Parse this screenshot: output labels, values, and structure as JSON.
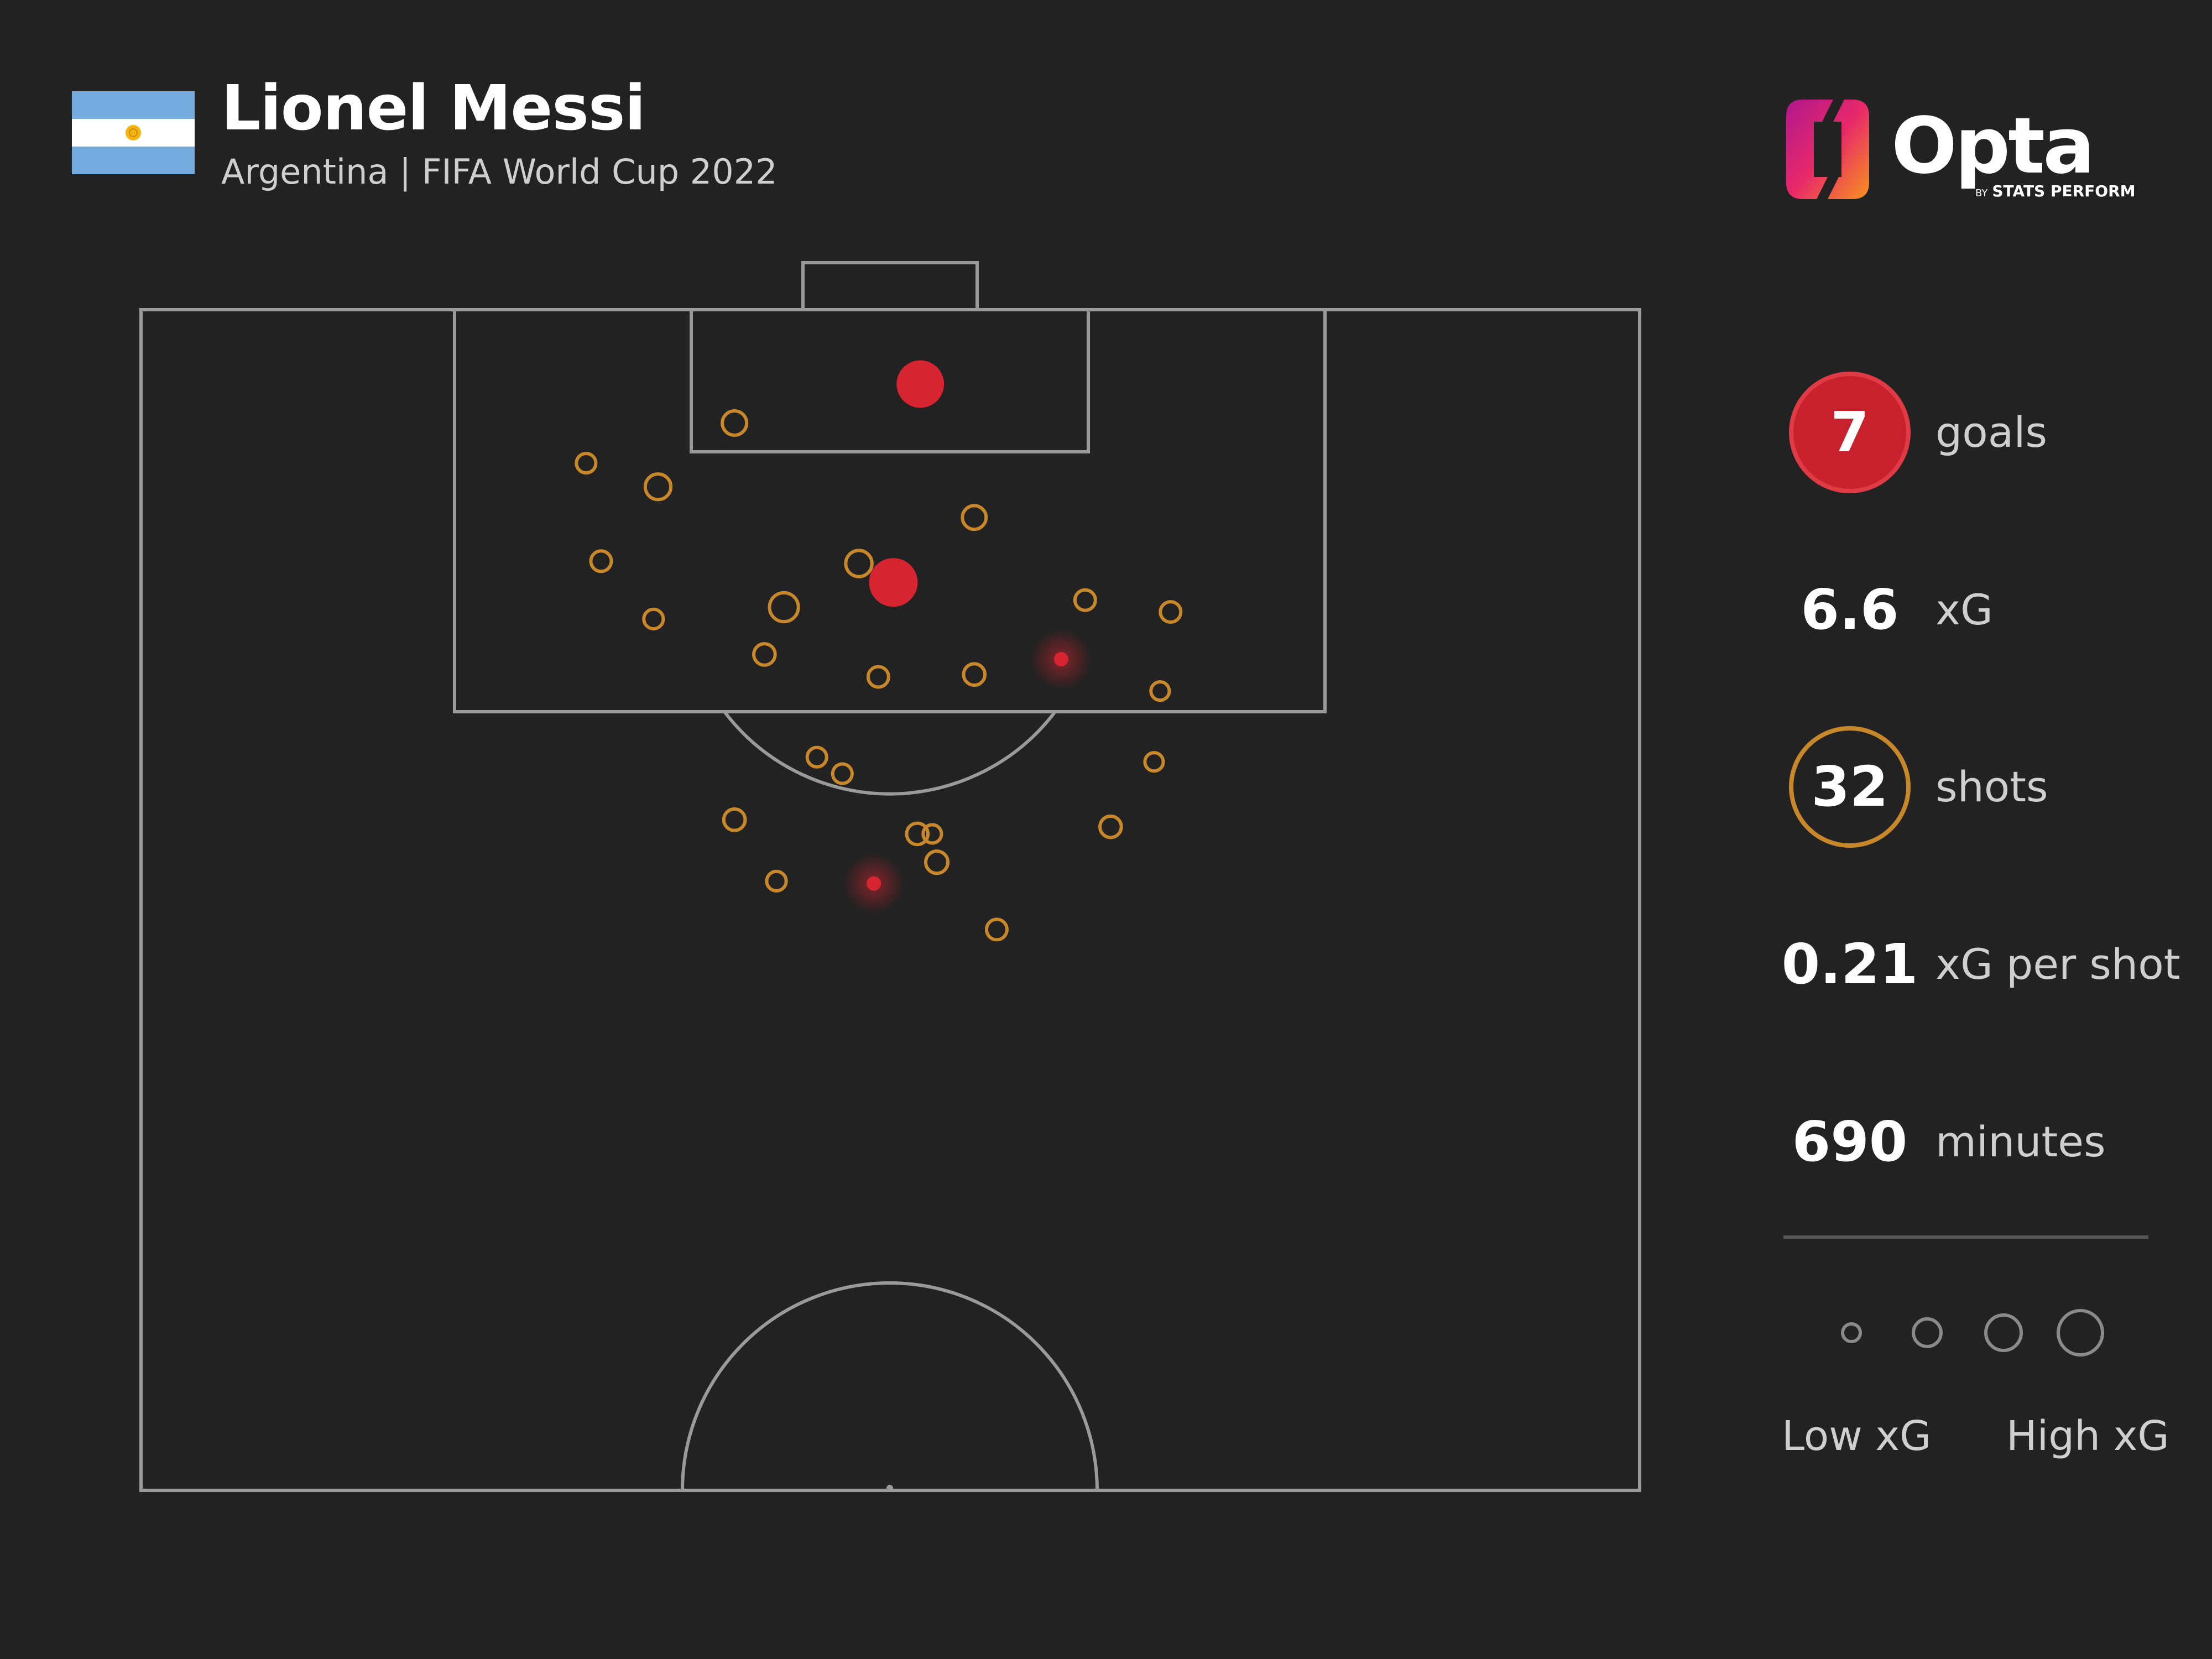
{
  "header": {
    "title": "Lionel Messi",
    "subtitle": "Argentina | FIFA World Cup 2022",
    "brand": "Opta",
    "brand_by": "BY",
    "brand_sub": "STATS PERFORM",
    "flag_colors": [
      "#74acdf",
      "#ffffff",
      "#74acdf"
    ],
    "sun_color": "#f6b40e"
  },
  "stats": [
    {
      "value": "7",
      "label": "goals"
    },
    {
      "value": "6.6",
      "label": "xG"
    },
    {
      "value": "32",
      "label": "shots"
    },
    {
      "value": "0.21",
      "label": "xG per shot"
    },
    {
      "value": "690",
      "label": "minutes"
    }
  ],
  "legend": {
    "low_label": "Low xG",
    "high_label": "High xG",
    "color": "#8a8a8a"
  },
  "colors": {
    "background": "#222222",
    "goal": "#d62530",
    "goal_circle": "#c8202c",
    "shot": "#c8882a",
    "pitch_line": "#9a9a9a"
  },
  "chart_data": {
    "type": "scatter",
    "description_units": "pitch coordinates: x = width across pitch (0-100), y = distance from goal line (0-100 of half pitch)",
    "x_range": [
      0,
      100
    ],
    "y_range": [
      0,
      100
    ],
    "points": [
      {
        "x": 52.0,
        "y": 6.3,
        "xg": 0.75,
        "outcome": "goal"
      },
      {
        "x": 50.2,
        "y": 23.1,
        "xg": 0.8,
        "outcome": "goal"
      },
      {
        "x": 61.4,
        "y": 29.6,
        "xg": 0.06,
        "outcome": "goal"
      },
      {
        "x": 48.9,
        "y": 48.6,
        "xg": 0.06,
        "outcome": "goal"
      },
      {
        "x": 39.6,
        "y": 9.6,
        "xg": 0.1,
        "outcome": "shot"
      },
      {
        "x": 29.7,
        "y": 13.0,
        "xg": 0.04,
        "outcome": "shot"
      },
      {
        "x": 34.5,
        "y": 15.0,
        "xg": 0.12,
        "outcome": "shot"
      },
      {
        "x": 55.6,
        "y": 17.6,
        "xg": 0.09,
        "outcome": "shot"
      },
      {
        "x": 30.7,
        "y": 21.3,
        "xg": 0.05,
        "outcome": "shot"
      },
      {
        "x": 47.9,
        "y": 21.5,
        "xg": 0.13,
        "outcome": "shot"
      },
      {
        "x": 42.9,
        "y": 25.2,
        "xg": 0.18,
        "outcome": "shot"
      },
      {
        "x": 34.2,
        "y": 26.2,
        "xg": 0.04,
        "outcome": "shot"
      },
      {
        "x": 63.0,
        "y": 24.6,
        "xg": 0.05,
        "outcome": "shot"
      },
      {
        "x": 68.7,
        "y": 25.6,
        "xg": 0.05,
        "outcome": "shot"
      },
      {
        "x": 41.6,
        "y": 29.2,
        "xg": 0.06,
        "outcome": "shot"
      },
      {
        "x": 49.2,
        "y": 31.1,
        "xg": 0.05,
        "outcome": "shot"
      },
      {
        "x": 55.6,
        "y": 30.9,
        "xg": 0.06,
        "outcome": "shot"
      },
      {
        "x": 68.0,
        "y": 32.3,
        "xg": 0.03,
        "outcome": "shot"
      },
      {
        "x": 45.1,
        "y": 37.9,
        "xg": 0.04,
        "outcome": "shot"
      },
      {
        "x": 46.8,
        "y": 39.3,
        "xg": 0.04,
        "outcome": "shot"
      },
      {
        "x": 67.6,
        "y": 38.3,
        "xg": 0.03,
        "outcome": "shot"
      },
      {
        "x": 39.6,
        "y": 43.2,
        "xg": 0.06,
        "outcome": "shot"
      },
      {
        "x": 51.8,
        "y": 44.4,
        "xg": 0.06,
        "outcome": "shot"
      },
      {
        "x": 52.8,
        "y": 44.4,
        "xg": 0.03,
        "outcome": "shot"
      },
      {
        "x": 64.7,
        "y": 43.8,
        "xg": 0.06,
        "outcome": "shot"
      },
      {
        "x": 53.1,
        "y": 46.8,
        "xg": 0.07,
        "outcome": "shot"
      },
      {
        "x": 42.4,
        "y": 48.4,
        "xg": 0.04,
        "outcome": "shot"
      },
      {
        "x": 57.1,
        "y": 52.5,
        "xg": 0.05,
        "outcome": "shot"
      }
    ],
    "legend": "right"
  }
}
